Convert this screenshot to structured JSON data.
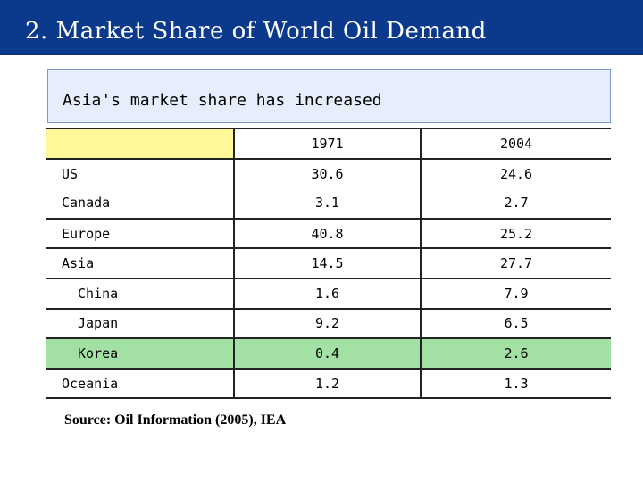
{
  "slide": {
    "title": "2. Market Share of World Oil Demand",
    "subtitle": "Asia's market share has increased",
    "source": "Source: Oil Information (2005), IEA"
  },
  "table": {
    "columns": [
      "",
      "1971",
      "2004"
    ],
    "rows": [
      {
        "label": "US",
        "v1971": "30.6",
        "v2004": "24.6"
      },
      {
        "label": "Canada",
        "v1971": "3.1",
        "v2004": "2.7"
      },
      {
        "label": "Europe",
        "v1971": "40.8",
        "v2004": "25.2"
      },
      {
        "label": "Asia",
        "v1971": "14.5",
        "v2004": "27.7"
      },
      {
        "label": "China",
        "v1971": "1.6",
        "v2004": "7.9"
      },
      {
        "label": "Japan",
        "v1971": "9.2",
        "v2004": "6.5"
      },
      {
        "label": "Korea",
        "v1971": "0.4",
        "v2004": "2.6"
      },
      {
        "label": "Oceania",
        "v1971": "1.2",
        "v2004": "1.3"
      }
    ]
  },
  "colors": {
    "title_bar": "#0b3a8c",
    "subtitle_box": "#e6eefb",
    "header_highlight": "#fff899",
    "korea_highlight": "#a3e0a3"
  }
}
